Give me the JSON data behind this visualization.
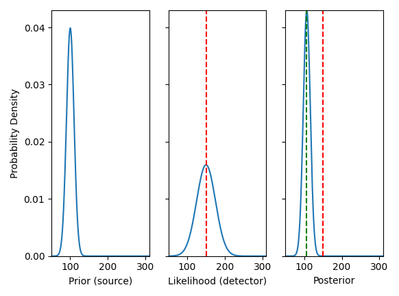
{
  "prior_mu": 100,
  "prior_sigma": 10,
  "likelihood_mu": 150,
  "likelihood_sigma": 25,
  "x_min": 50,
  "x_max": 310,
  "xlim": [
    50,
    310
  ],
  "ylim": [
    0,
    0.043
  ],
  "xticks": [
    100,
    200,
    300
  ],
  "yticks": [
    0.0,
    0.01,
    0.02,
    0.03,
    0.04
  ],
  "ylabel": "Probability Density",
  "titles": [
    "Prior (source)",
    "Likelihood (detector)",
    "Posterior"
  ],
  "line_color": "#1f77b4",
  "red_line_color": "red",
  "green_line_color": "green",
  "mle_value": 150,
  "bayesian_value": 106,
  "figsize": [
    5.82,
    4.32
  ],
  "dpi": 100
}
